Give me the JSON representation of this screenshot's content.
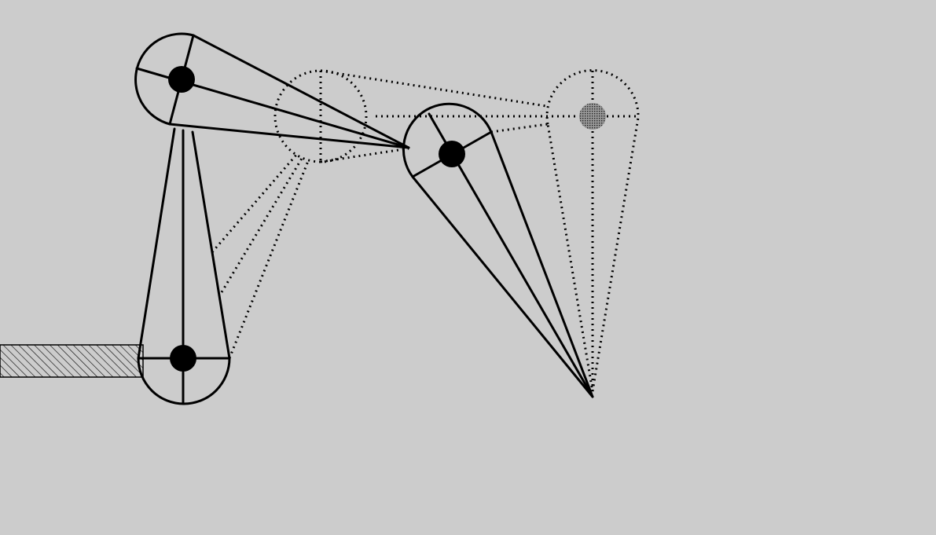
{
  "diagram": {
    "kind": "two-link robotic arm, current pose (solid) vs previous/target pose (dotted)",
    "colors": {
      "background": "#cccccc",
      "ink": "#000000",
      "ghost_target": "#888888",
      "base_hatch": "#000000"
    },
    "parts": [
      {
        "name": "fixed-base",
        "style": "hatched"
      },
      {
        "name": "base-joint",
        "style": "solid"
      },
      {
        "name": "shoulder-joint",
        "style": "solid"
      },
      {
        "name": "elbow-joint",
        "style": "solid"
      },
      {
        "name": "previous-elbow-joint",
        "style": "dotted"
      },
      {
        "name": "previous-end-joint",
        "style": "dotted-grey"
      }
    ]
  }
}
